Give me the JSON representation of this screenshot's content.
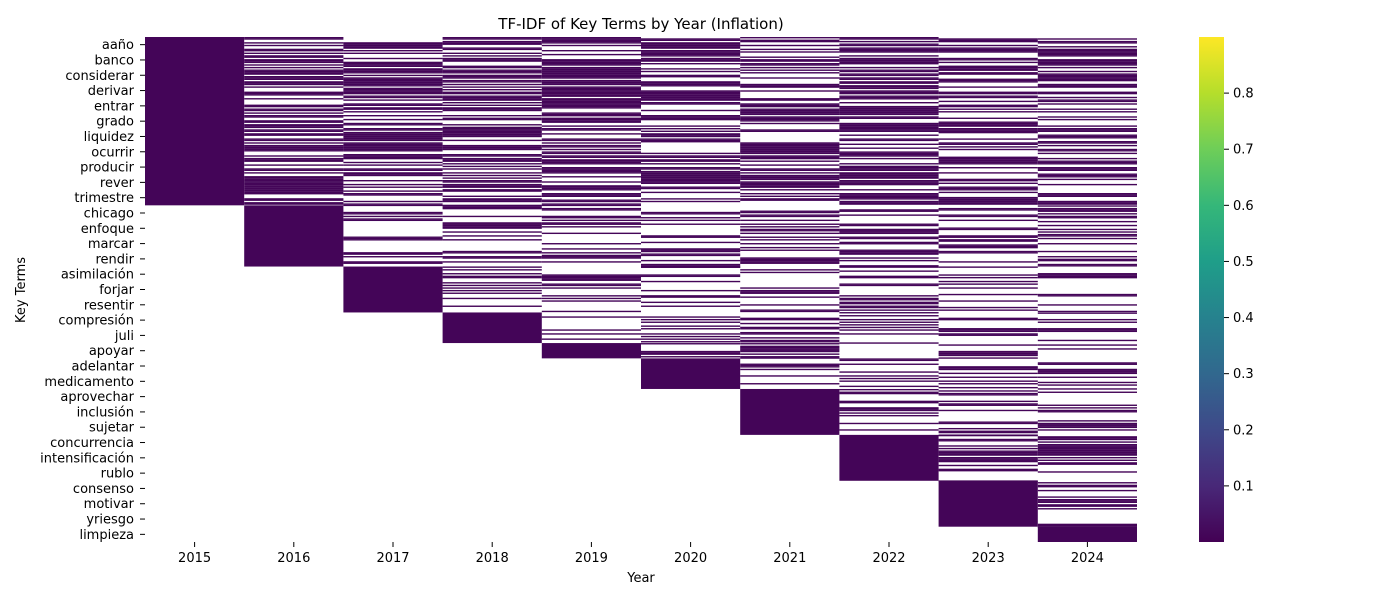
{
  "chart_data": {
    "type": "heatmap",
    "title": "TF-IDF of Key Terms by Year (Inflation)",
    "xlabel": "Year",
    "ylabel": "Key Terms",
    "years": [
      "2015",
      "2016",
      "2017",
      "2018",
      "2019",
      "2020",
      "2021",
      "2022",
      "2023",
      "2024"
    ],
    "ytick_labels": [
      "aaño",
      "banco",
      "considerar",
      "derivar",
      "entrar",
      "grado",
      "liquidez",
      "ocurrir",
      "producir",
      "rever",
      "trimestre",
      "chicago",
      "enfoque",
      "marcar",
      "rendir",
      "asimilación",
      "forjar",
      "resentir",
      "compresión",
      "juli",
      "apoyar",
      "adelantar",
      "medicamento",
      "aprovechar",
      "inclusión",
      "sujetar",
      "concurrencia",
      "intensificación",
      "rublo",
      "consenso",
      "motivar",
      "yriesgo",
      "limpieza"
    ],
    "term_groups": [
      {
        "first_year": "2015",
        "first_label": "aaño",
        "last_label": "trimestre"
      },
      {
        "first_year": "2016",
        "first_label": "chicago",
        "last_label": "rendir"
      },
      {
        "first_year": "2017",
        "first_label": "asimilación",
        "last_label": "resentir"
      },
      {
        "first_year": "2018",
        "first_label": "compresión",
        "last_label": "juli"
      },
      {
        "first_year": "2019",
        "first_label": "apoyar",
        "last_label": "apoyar"
      },
      {
        "first_year": "2020",
        "first_label": "adelantar",
        "last_label": "medicamento"
      },
      {
        "first_year": "2021",
        "first_label": "aprovechar",
        "last_label": "sujetar"
      },
      {
        "first_year": "2022",
        "first_label": "concurrencia",
        "last_label": "rublo"
      },
      {
        "first_year": "2023",
        "first_label": "consenso",
        "last_label": "yriesgo"
      },
      {
        "first_year": "2024",
        "first_label": "limpieza",
        "last_label": "limpieza"
      }
    ],
    "cell_fill": "near-zero TF-IDF where a term is present; blank where absent",
    "present_value": 0.01,
    "absent_value": null,
    "colorbar": {
      "colormap": "viridis",
      "vmin": 0.0,
      "vmax": 0.9,
      "ticks": [
        0.1,
        0.2,
        0.3,
        0.4,
        0.5,
        0.6,
        0.7,
        0.8
      ],
      "tick_labels": [
        "0.1",
        "0.2",
        "0.3",
        "0.4",
        "0.5",
        "0.6",
        "0.7",
        "0.8"
      ],
      "stops": [
        "#440154",
        "#482878",
        "#3e4989",
        "#31688e",
        "#26828e",
        "#1f9e89",
        "#35b779",
        "#6ece58",
        "#b5de2b",
        "#fde725"
      ]
    },
    "grid": false,
    "legend": "colorbar right"
  }
}
